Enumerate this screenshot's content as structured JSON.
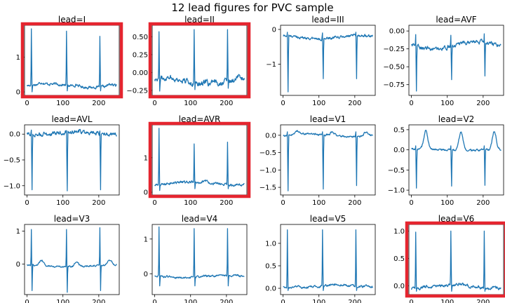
{
  "title": "12 lead figures for PVC sample",
  "line_color": "#1f77b4",
  "highlight_color": "#e5252f",
  "chart_data": [
    {
      "type": "line",
      "title": "lead=I",
      "highlighted": true,
      "xlim": [
        -7,
        257
      ],
      "ylim": [
        -0.1,
        1.92
      ],
      "xticks": [
        0,
        100,
        200
      ],
      "yticks": [
        0,
        1
      ],
      "yticklabels": [
        "0",
        "1"
      ],
      "baseline": 0.18,
      "noise": 0.03,
      "wander": 0.05,
      "t_wave": 0.05,
      "beats": [
        {
          "x": 12,
          "peak": 1.82,
          "trough": 0.0
        },
        {
          "x": 110,
          "peak": 1.75,
          "trough": 0.03
        },
        {
          "x": 203,
          "peak": 1.6,
          "trough": 0.03
        }
      ]
    },
    {
      "type": "line",
      "title": "lead=II",
      "highlighted": true,
      "xlim": [
        -7,
        257
      ],
      "ylim": [
        -0.32,
        0.66
      ],
      "xticks": [
        0,
        100,
        200
      ],
      "yticks": [
        -0.25,
        0,
        0.25,
        0.5
      ],
      "yticklabels": [
        "−0.25",
        "0.00",
        "0.25",
        "0.50"
      ],
      "baseline": -0.12,
      "noise": 0.03,
      "wander": 0.04,
      "t_wave": 0.03,
      "beats": [
        {
          "x": 12,
          "peak": 0.57,
          "trough": -0.26
        },
        {
          "x": 110,
          "peak": 0.6,
          "trough": -0.24
        },
        {
          "x": 203,
          "peak": 0.6,
          "trough": -0.22
        }
      ]
    },
    {
      "type": "line",
      "title": "lead=III",
      "highlighted": false,
      "xlim": [
        -7,
        257
      ],
      "ylim": [
        -1.9,
        0.12
      ],
      "xticks": [
        0,
        100,
        200
      ],
      "yticks": [
        -1,
        0
      ],
      "yticklabels": [
        "−1",
        "0"
      ],
      "baseline": -0.22,
      "noise": 0.03,
      "wander": 0.05,
      "t_wave": 0.0,
      "beats": [
        {
          "x": 12,
          "peak": -0.08,
          "trough": -1.8
        },
        {
          "x": 110,
          "peak": -0.1,
          "trough": -1.42
        },
        {
          "x": 203,
          "peak": -0.08,
          "trough": -1.42
        }
      ]
    },
    {
      "type": "line",
      "title": "lead=AVF",
      "highlighted": false,
      "xlim": [
        -7,
        257
      ],
      "ylim": [
        -0.9,
        0.08
      ],
      "xticks": [
        0,
        100,
        200
      ],
      "yticks": [
        -0.75,
        -0.5,
        -0.25,
        0
      ],
      "yticklabels": [
        "−0.75",
        "−0.50",
        "−0.25",
        "0.00"
      ],
      "baseline": -0.2,
      "noise": 0.02,
      "wander": 0.05,
      "t_wave": 0.0,
      "beats": [
        {
          "x": 12,
          "peak": -0.05,
          "trough": -0.84
        },
        {
          "x": 110,
          "peak": -0.06,
          "trough": -0.68
        },
        {
          "x": 203,
          "peak": -0.04,
          "trough": -0.63
        }
      ]
    },
    {
      "type": "line",
      "title": "lead=AVL",
      "highlighted": false,
      "xlim": [
        -7,
        257
      ],
      "ylim": [
        -1.18,
        0.18
      ],
      "xticks": [
        0,
        100,
        200
      ],
      "yticks": [
        -1.0,
        -0.5,
        0.0
      ],
      "yticklabels": [
        "−1.0",
        "−0.5",
        "0.0"
      ],
      "baseline": 0.02,
      "noise": 0.03,
      "wander": 0.03,
      "t_wave": 0.0,
      "beats": [
        {
          "x": 12,
          "peak": 0.08,
          "trough": -1.08
        },
        {
          "x": 110,
          "peak": 0.07,
          "trough": -1.1
        },
        {
          "x": 203,
          "peak": 0.06,
          "trough": -1.08
        }
      ]
    },
    {
      "type": "line",
      "title": "lead=AVR",
      "highlighted": true,
      "xlim": [
        -7,
        257
      ],
      "ylim": [
        -0.08,
        1.95
      ],
      "xticks": [
        0,
        100,
        200
      ],
      "yticks": [
        0,
        1
      ],
      "yticklabels": [
        "0",
        "1"
      ],
      "baseline": 0.25,
      "noise": 0.03,
      "wander": 0.05,
      "t_wave": 0.03,
      "beats": [
        {
          "x": 12,
          "peak": 1.85,
          "trough": 0.05
        },
        {
          "x": 110,
          "peak": 1.4,
          "trough": 0.1
        },
        {
          "x": 203,
          "peak": 1.45,
          "trough": 0.1
        }
      ]
    },
    {
      "type": "line",
      "title": "lead=V1",
      "highlighted": false,
      "xlim": [
        -7,
        257
      ],
      "ylim": [
        -1.72,
        0.3
      ],
      "xticks": [
        0,
        100,
        200
      ],
      "yticks": [
        -1.5,
        -1.0,
        -0.5,
        0.0
      ],
      "yticklabels": [
        "−1.5",
        "−1.0",
        "−0.5",
        "0.0"
      ],
      "baseline": 0.0,
      "noise": 0.02,
      "wander": 0.04,
      "t_wave": 0.1,
      "beats": [
        {
          "x": 12,
          "peak": 0.1,
          "trough": -1.6
        },
        {
          "x": 110,
          "peak": 0.1,
          "trough": -1.55
        },
        {
          "x": 203,
          "peak": 0.1,
          "trough": -1.45
        }
      ]
    },
    {
      "type": "line",
      "title": "lead=V2",
      "highlighted": false,
      "xlim": [
        -7,
        257
      ],
      "ylim": [
        -1.12,
        0.62
      ],
      "xticks": [
        0,
        100,
        200
      ],
      "yticks": [
        -1.0,
        -0.5,
        0.0,
        0.5
      ],
      "yticklabels": [
        "−1.0",
        "−0.5",
        "0.0",
        "0.5"
      ],
      "baseline": 0.0,
      "noise": 0.02,
      "wander": 0.02,
      "t_wave": 0.45,
      "beats": [
        {
          "x": 12,
          "peak": 0.1,
          "trough": -0.95
        },
        {
          "x": 110,
          "peak": 0.1,
          "trough": -0.9
        },
        {
          "x": 203,
          "peak": 0.1,
          "trough": -0.88
        }
      ]
    },
    {
      "type": "line",
      "title": "lead=V3",
      "highlighted": false,
      "xlim": [
        -7,
        257
      ],
      "ylim": [
        -0.92,
        1.2
      ],
      "xticks": [
        0,
        100,
        200
      ],
      "yticks": [
        0,
        1
      ],
      "yticklabels": [
        "0",
        "1"
      ],
      "baseline": -0.05,
      "noise": 0.02,
      "wander": 0.03,
      "t_wave": 0.15,
      "beats": [
        {
          "x": 12,
          "peak": 1.05,
          "trough": -0.8
        },
        {
          "x": 110,
          "peak": 1.05,
          "trough": -0.85
        },
        {
          "x": 203,
          "peak": 1.1,
          "trough": -0.8
        }
      ]
    },
    {
      "type": "line",
      "title": "lead=V4",
      "highlighted": false,
      "xlim": [
        -7,
        257
      ],
      "ylim": [
        -0.6,
        1.42
      ],
      "xticks": [
        0,
        100,
        200
      ],
      "yticks": [
        0,
        1
      ],
      "yticklabels": [
        "0",
        "1"
      ],
      "baseline": -0.08,
      "noise": 0.02,
      "wander": 0.03,
      "t_wave": 0.02,
      "beats": [
        {
          "x": 12,
          "peak": 1.35,
          "trough": -0.35
        },
        {
          "x": 110,
          "peak": 1.3,
          "trough": -0.35
        },
        {
          "x": 203,
          "peak": 1.3,
          "trough": -0.35
        }
      ]
    },
    {
      "type": "line",
      "title": "lead=V5",
      "highlighted": false,
      "xlim": [
        -7,
        257
      ],
      "ylim": [
        -0.14,
        1.42
      ],
      "xticks": [
        0,
        100,
        200
      ],
      "yticks": [
        0.0,
        0.5,
        1.0
      ],
      "yticklabels": [
        "0.0",
        "0.5",
        "1.0"
      ],
      "baseline": 0.04,
      "noise": 0.02,
      "wander": 0.03,
      "t_wave": 0.03,
      "beats": [
        {
          "x": 12,
          "peak": 1.3,
          "trough": -0.05
        },
        {
          "x": 110,
          "peak": 1.3,
          "trough": -0.05
        },
        {
          "x": 203,
          "peak": 1.3,
          "trough": -0.05
        }
      ]
    },
    {
      "type": "line",
      "title": "lead=V6",
      "highlighted": true,
      "xlim": [
        -7,
        257
      ],
      "ylim": [
        -0.16,
        1.12
      ],
      "xticks": [
        0,
        100,
        200
      ],
      "yticks": [
        0.0,
        0.5,
        1.0
      ],
      "yticklabels": [
        "0.0",
        "0.5",
        "1.0"
      ],
      "baseline": -0.02,
      "noise": 0.02,
      "wander": 0.03,
      "t_wave": 0.03,
      "beats": [
        {
          "x": 12,
          "peak": 0.98,
          "trough": -0.1
        },
        {
          "x": 110,
          "peak": 1.0,
          "trough": -0.1
        },
        {
          "x": 203,
          "peak": 1.0,
          "trough": -0.1
        }
      ]
    }
  ]
}
